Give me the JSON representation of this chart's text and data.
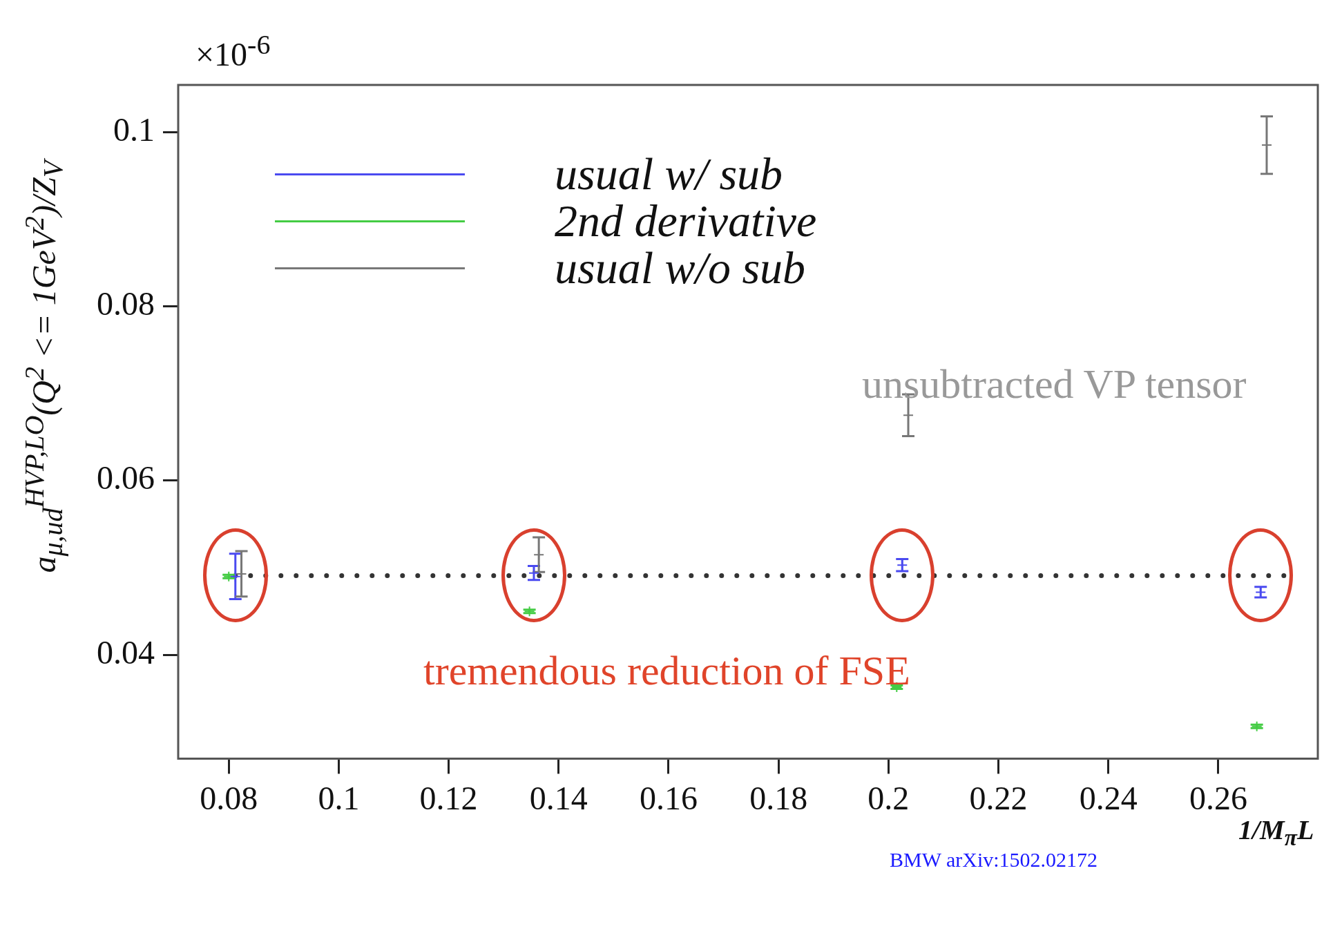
{
  "chart_data": {
    "type": "scatter",
    "xlabel": "1/M$_{π}$L",
    "ylabel": "a$_{μ,ud}$$^{HVP,LO}$(Q$^{2}$ <= 1GeV$^{2}$)/Z$_{V}$",
    "annotations": [
      "×10$^{-6}$",
      "unsubtracted VP tensor",
      "tremendous reduction of FSE",
      "BMW arXiv:1502.02172"
    ],
    "series": [
      {
        "name": "usual w/ sub",
        "color": "#4a4af0",
        "x": [
          0.0812,
          0.1355,
          0.2025,
          0.2677
        ],
        "values": [
          0.049,
          0.0494,
          0.0503,
          0.0472
        ],
        "errors": [
          0.0026,
          0.0008,
          0.0007,
          0.0006
        ]
      },
      {
        "name": "2nd derivative",
        "color": "#44cc44",
        "x": [
          0.08,
          0.1347,
          0.2015,
          0.267
        ],
        "values": [
          0.049,
          0.045,
          0.0363,
          0.0318
        ],
        "errors": [
          0.0002,
          0.0002,
          0.0002,
          0.0002
        ]
      },
      {
        "name": "usual w/o sub",
        "color": "#777777",
        "x": [
          0.0823,
          0.1364,
          0.2036,
          0.2688
        ],
        "values": [
          0.0493,
          0.0515,
          0.0675,
          0.0985
        ],
        "errors": [
          0.0026,
          0.002,
          0.0024,
          0.0033
        ]
      }
    ],
    "xlim": [
      0.0708,
      0.2781
    ],
    "ylim": [
      0.0281,
      0.1054
    ],
    "xticks": [
      0.08,
      0.1,
      0.12,
      0.14,
      0.16,
      0.18,
      0.2,
      0.22,
      0.24,
      0.26
    ],
    "yticks": [
      0.04,
      0.06,
      0.08,
      0.1
    ],
    "ref_lines": [
      {
        "axis": "y",
        "value": 0.0491,
        "color": "#333333",
        "line_style": "dotted"
      }
    ],
    "grid": false,
    "legend": "top left",
    "marker": "cross"
  }
}
